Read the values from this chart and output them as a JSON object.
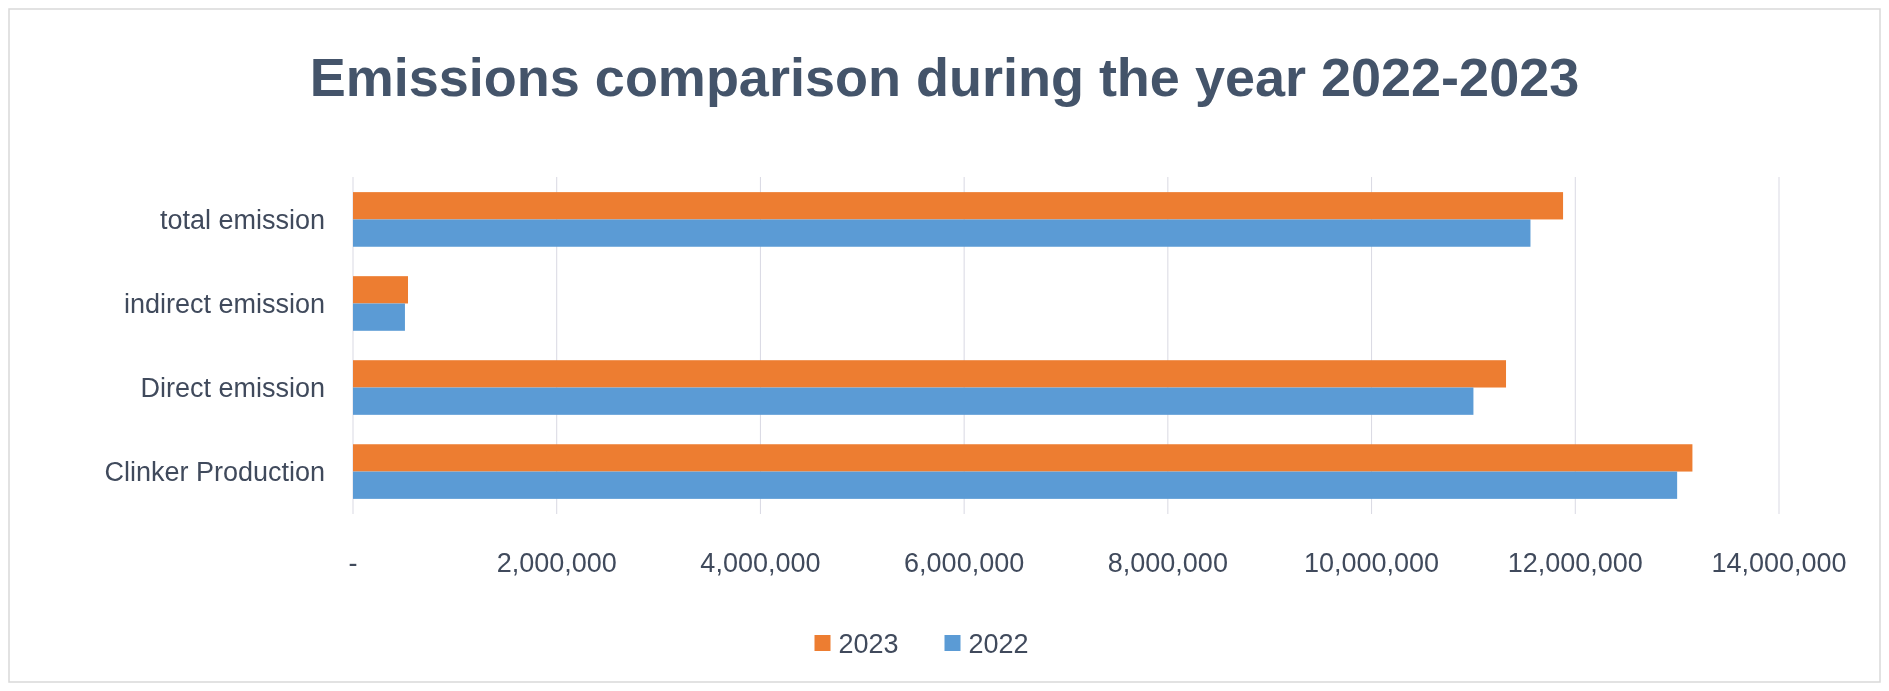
{
  "chart_data": {
    "type": "bar",
    "orientation": "horizontal",
    "title": "Emissions comparison during the year 2022-2023",
    "categories": [
      "total emission",
      "indirect emission",
      "Direct emission",
      "Clinker Production"
    ],
    "series": [
      {
        "name": "2023",
        "color": "#ed7d31",
        "values": [
          11880000,
          540000,
          11320000,
          13150000
        ]
      },
      {
        "name": "2022",
        "color": "#5b9bd5",
        "values": [
          11560000,
          510000,
          11000000,
          13000000
        ]
      }
    ],
    "xlim": [
      0,
      14000000
    ],
    "xticks": [
      {
        "value": 0,
        "label": "-"
      },
      {
        "value": 2000000,
        "label": "2,000,000"
      },
      {
        "value": 4000000,
        "label": "4,000,000"
      },
      {
        "value": 6000000,
        "label": "6,000,000"
      },
      {
        "value": 8000000,
        "label": "8,000,000"
      },
      {
        "value": 10000000,
        "label": "10,000,000"
      },
      {
        "value": 12000000,
        "label": "12,000,000"
      },
      {
        "value": 14000000,
        "label": "14,000,000"
      }
    ],
    "grid": "x",
    "legend": "bottom"
  }
}
